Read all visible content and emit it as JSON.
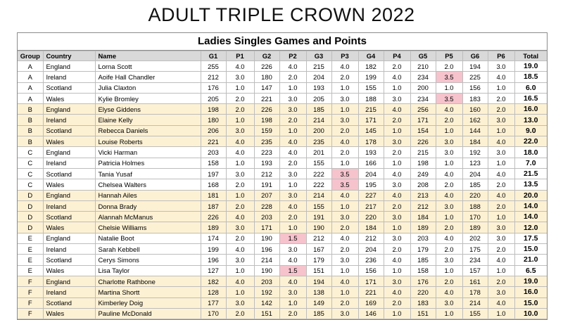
{
  "title": "ADULT TRIPLE CROWN 2022",
  "subtitle": "Ladies Singles Games and Points",
  "columns": [
    "Group",
    "Country",
    "Name",
    "G1",
    "P1",
    "G2",
    "P2",
    "G3",
    "P3",
    "G4",
    "P4",
    "G5",
    "P5",
    "G6",
    "P6",
    "Total"
  ],
  "colors": {
    "band_even": "#fdf1d3",
    "band_odd": "#ffffff",
    "highlight": "#f6c3cd",
    "header_bg": "#d9d9d9"
  },
  "rows": [
    {
      "cells": [
        "A",
        "England",
        "Lorna Scott",
        "255",
        "4.0",
        "226",
        "4.0",
        "215",
        "4.0",
        "182",
        "2.0",
        "210",
        "2.0",
        "194",
        "3.0",
        "19.0"
      ],
      "hl": []
    },
    {
      "cells": [
        "A",
        "Ireland",
        "Aoife Hall Chandler",
        "212",
        "3.0",
        "180",
        "2.0",
        "204",
        "2.0",
        "199",
        "4.0",
        "234",
        "3.5",
        "225",
        "4.0",
        "18.5"
      ],
      "hl": [
        12
      ]
    },
    {
      "cells": [
        "A",
        "Scotland",
        "Julia Claxton",
        "176",
        "1.0",
        "147",
        "1.0",
        "193",
        "1.0",
        "155",
        "1.0",
        "200",
        "1.0",
        "156",
        "1.0",
        "6.0"
      ],
      "hl": []
    },
    {
      "cells": [
        "A",
        "Wales",
        "Kylie Bromley",
        "205",
        "2.0",
        "221",
        "3.0",
        "205",
        "3.0",
        "188",
        "3.0",
        "234",
        "3.5",
        "183",
        "2.0",
        "16.5"
      ],
      "hl": [
        12
      ]
    },
    {
      "cells": [
        "B",
        "England",
        "Elyse Giddens",
        "198",
        "2.0",
        "226",
        "3.0",
        "185",
        "1.0",
        "215",
        "4.0",
        "256",
        "4.0",
        "160",
        "2.0",
        "16.0"
      ],
      "hl": []
    },
    {
      "cells": [
        "B",
        "Ireland",
        "Elaine Kelly",
        "180",
        "1.0",
        "198",
        "2.0",
        "214",
        "3.0",
        "171",
        "2.0",
        "171",
        "2.0",
        "162",
        "3.0",
        "13.0"
      ],
      "hl": []
    },
    {
      "cells": [
        "B",
        "Scotland",
        "Rebecca Daniels",
        "206",
        "3.0",
        "159",
        "1.0",
        "200",
        "2.0",
        "145",
        "1.0",
        "154",
        "1.0",
        "144",
        "1.0",
        "9.0"
      ],
      "hl": []
    },
    {
      "cells": [
        "B",
        "Wales",
        "Louise Roberts",
        "221",
        "4.0",
        "235",
        "4.0",
        "235",
        "4.0",
        "178",
        "3.0",
        "226",
        "3.0",
        "184",
        "4.0",
        "22.0"
      ],
      "hl": []
    },
    {
      "cells": [
        "C",
        "England",
        "Vicki Harman",
        "203",
        "4.0",
        "223",
        "4.0",
        "201",
        "2.0",
        "193",
        "2.0",
        "215",
        "3.0",
        "192",
        "3.0",
        "18.0"
      ],
      "hl": []
    },
    {
      "cells": [
        "C",
        "Ireland",
        "Patricia Holmes",
        "158",
        "1.0",
        "193",
        "2.0",
        "155",
        "1.0",
        "166",
        "1.0",
        "198",
        "1.0",
        "123",
        "1.0",
        "7.0"
      ],
      "hl": []
    },
    {
      "cells": [
        "C",
        "Scotland",
        "Tania Yusaf",
        "197",
        "3.0",
        "212",
        "3.0",
        "222",
        "3.5",
        "204",
        "4.0",
        "249",
        "4.0",
        "204",
        "4.0",
        "21.5"
      ],
      "hl": [
        8
      ]
    },
    {
      "cells": [
        "C",
        "Wales",
        "Chelsea Walters",
        "168",
        "2.0",
        "191",
        "1.0",
        "222",
        "3.5",
        "195",
        "3.0",
        "208",
        "2.0",
        "185",
        "2.0",
        "13.5"
      ],
      "hl": [
        8
      ]
    },
    {
      "cells": [
        "D",
        "England",
        "Hannah Ailes",
        "181",
        "1.0",
        "207",
        "3.0",
        "214",
        "4.0",
        "227",
        "4.0",
        "213",
        "4.0",
        "220",
        "4.0",
        "20.0"
      ],
      "hl": []
    },
    {
      "cells": [
        "D",
        "Ireland",
        "Donna Brady",
        "187",
        "2.0",
        "228",
        "4.0",
        "155",
        "1.0",
        "217",
        "2.0",
        "212",
        "3.0",
        "188",
        "2.0",
        "14.0"
      ],
      "hl": []
    },
    {
      "cells": [
        "D",
        "Scotland",
        "Alannah McManus",
        "226",
        "4.0",
        "203",
        "2.0",
        "191",
        "3.0",
        "220",
        "3.0",
        "184",
        "1.0",
        "170",
        "1.0",
        "14.0"
      ],
      "hl": []
    },
    {
      "cells": [
        "D",
        "Wales",
        "Chelsie Williams",
        "189",
        "3.0",
        "171",
        "1.0",
        "190",
        "2.0",
        "184",
        "1.0",
        "189",
        "2.0",
        "189",
        "3.0",
        "12.0"
      ],
      "hl": []
    },
    {
      "cells": [
        "E",
        "England",
        "Natalie Boot",
        "174",
        "2.0",
        "190",
        "1.5",
        "212",
        "4.0",
        "212",
        "3.0",
        "203",
        "4.0",
        "202",
        "3.0",
        "17.5"
      ],
      "hl": [
        6
      ]
    },
    {
      "cells": [
        "E",
        "Ireland",
        "Sarah Kebbell",
        "199",
        "4.0",
        "196",
        "3.0",
        "167",
        "2.0",
        "204",
        "2.0",
        "179",
        "2.0",
        "175",
        "2.0",
        "15.0"
      ],
      "hl": []
    },
    {
      "cells": [
        "E",
        "Scotland",
        "Cerys Simons",
        "196",
        "3.0",
        "214",
        "4.0",
        "179",
        "3.0",
        "236",
        "4.0",
        "185",
        "3.0",
        "234",
        "4.0",
        "21.0"
      ],
      "hl": []
    },
    {
      "cells": [
        "E",
        "Wales",
        "Lisa Taylor",
        "127",
        "1.0",
        "190",
        "1.5",
        "151",
        "1.0",
        "156",
        "1.0",
        "158",
        "1.0",
        "157",
        "1.0",
        "6.5"
      ],
      "hl": [
        6
      ]
    },
    {
      "cells": [
        "F",
        "England",
        "Charlotte Rathbone",
        "182",
        "4.0",
        "203",
        "4.0",
        "194",
        "4.0",
        "171",
        "3.0",
        "176",
        "2.0",
        "161",
        "2.0",
        "19.0"
      ],
      "hl": []
    },
    {
      "cells": [
        "F",
        "Ireland",
        "Martina Shortt",
        "128",
        "1.0",
        "192",
        "3.0",
        "138",
        "1.0",
        "221",
        "4.0",
        "220",
        "4.0",
        "178",
        "3.0",
        "16.0"
      ],
      "hl": []
    },
    {
      "cells": [
        "F",
        "Scotland",
        "Kimberley Doig",
        "177",
        "3.0",
        "142",
        "1.0",
        "149",
        "2.0",
        "169",
        "2.0",
        "183",
        "3.0",
        "214",
        "4.0",
        "15.0"
      ],
      "hl": []
    },
    {
      "cells": [
        "F",
        "Wales",
        "Pauline McDonald",
        "170",
        "2.0",
        "151",
        "2.0",
        "185",
        "3.0",
        "146",
        "1.0",
        "151",
        "1.0",
        "155",
        "1.0",
        "10.0"
      ],
      "hl": []
    }
  ]
}
